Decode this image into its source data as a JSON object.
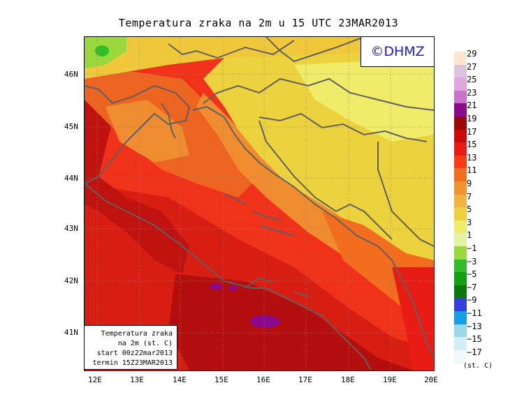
{
  "title": "Temperatura zraka na 2m u 15 UTC 23MAR2013",
  "copyright": "©DHMZ",
  "info_box": {
    "line1": "Temperatura zraka",
    "line2": "na 2m (st. C)",
    "line3": "start 00z22mar2013",
    "line4": "termin 15Z23MAR2013"
  },
  "axes": {
    "lat_labels": [
      "46N",
      "45N",
      "44N",
      "43N",
      "42N",
      "41N"
    ],
    "lon_labels": [
      "12E",
      "13E",
      "14E",
      "15E",
      "16E",
      "17E",
      "18E",
      "19E",
      "20E"
    ]
  },
  "legend": {
    "unit": "(st. C)",
    "labels": [
      "29",
      "27",
      "25",
      "23",
      "21",
      "19",
      "17",
      "15",
      "13",
      "11",
      "9",
      "7",
      "5",
      "3",
      "1",
      "−1",
      "−3",
      "−5",
      "−7",
      "−9",
      "−11",
      "−13",
      "−15",
      "−17"
    ],
    "colors": [
      "#fde6d0",
      "#dcc4dc",
      "#e0a6e0",
      "#c872c8",
      "#8c0a8c",
      "#9a0808",
      "#c80a0a",
      "#e81c14",
      "#fa3c14",
      "#f26e1e",
      "#f09432",
      "#f0b43c",
      "#ecd23c",
      "#f0ec6a",
      "#e4f4a4",
      "#9ad83c",
      "#32bc2a",
      "#14a014",
      "#0c780c",
      "#3440dc",
      "#189ee8",
      "#9ad8e8",
      "#d2eef4",
      "#f0fafc"
    ]
  }
}
